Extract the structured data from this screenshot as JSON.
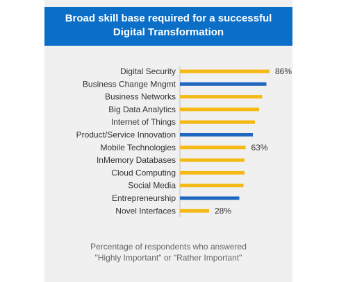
{
  "header": {
    "line1": "Broad skill base required for a successful",
    "line2": "Digital Transformation"
  },
  "footnote": {
    "line1": "Percentage of respondents who answered",
    "line2": "\"Highly Important\" or \"Rather Important\""
  },
  "colors": {
    "header_bg": "#0b6fc7",
    "yellow": "#f5b915",
    "blue": "#1f66c1",
    "panel_bg": "#f0f0f0"
  },
  "chart_data": {
    "type": "bar",
    "orientation": "horizontal",
    "title": "Broad skill base required for a successful Digital Transformation",
    "categories": [
      "Digital Security",
      "Business Change Mngmt",
      "Business Networks",
      "Big Data Analytics",
      "Internet of Things",
      "Product/Service Innovation",
      "Mobile Technologies",
      "InMemory Databases",
      "Cloud Computing",
      "Social Media",
      "Entrepreneurship",
      "Novel Interfaces"
    ],
    "values": [
      86,
      83,
      79,
      76,
      72,
      70,
      63,
      62,
      62,
      61,
      57,
      28
    ],
    "bar_colors": [
      "yellow",
      "blue",
      "yellow",
      "yellow",
      "yellow",
      "blue",
      "yellow",
      "yellow",
      "yellow",
      "yellow",
      "blue",
      "yellow"
    ],
    "data_labels": [
      {
        "index": 0,
        "text": "86%"
      },
      {
        "index": 6,
        "text": "63%"
      },
      {
        "index": 11,
        "text": "28%"
      }
    ],
    "xlim": [
      0,
      100
    ],
    "grid": false,
    "legend": "none"
  }
}
